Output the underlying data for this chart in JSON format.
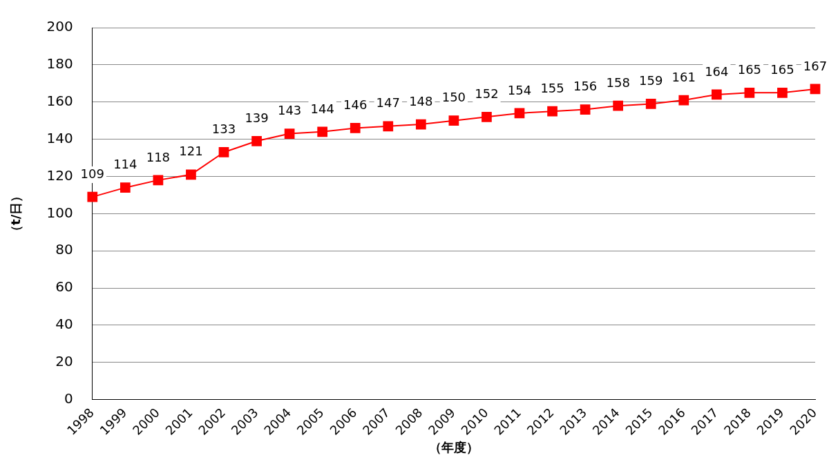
{
  "chart_data": {
    "type": "line",
    "ylabel": "（t/日）",
    "xlabel": "（年度）",
    "categories": [
      "1998",
      "1999",
      "2000",
      "2001",
      "2002",
      "2003",
      "2004",
      "2005",
      "2006",
      "2007",
      "2008",
      "2009",
      "2010",
      "2011",
      "2012",
      "2013",
      "2014",
      "2015",
      "2016",
      "2017",
      "2018",
      "2019",
      "2020"
    ],
    "series": [
      {
        "color": "#ff0000",
        "values": [
          109,
          114,
          118,
          121,
          133,
          139,
          143,
          144,
          146,
          147,
          148,
          150,
          152,
          154,
          155,
          156,
          158,
          159,
          161,
          164,
          165,
          165,
          167
        ]
      }
    ],
    "ylim": [
      0,
      200
    ],
    "yticks": [
      0,
      20,
      40,
      60,
      80,
      100,
      120,
      140,
      160,
      180,
      200
    ],
    "grid": "y",
    "legend": false,
    "marker": "square",
    "line_style": "solid",
    "data_labels": true
  }
}
